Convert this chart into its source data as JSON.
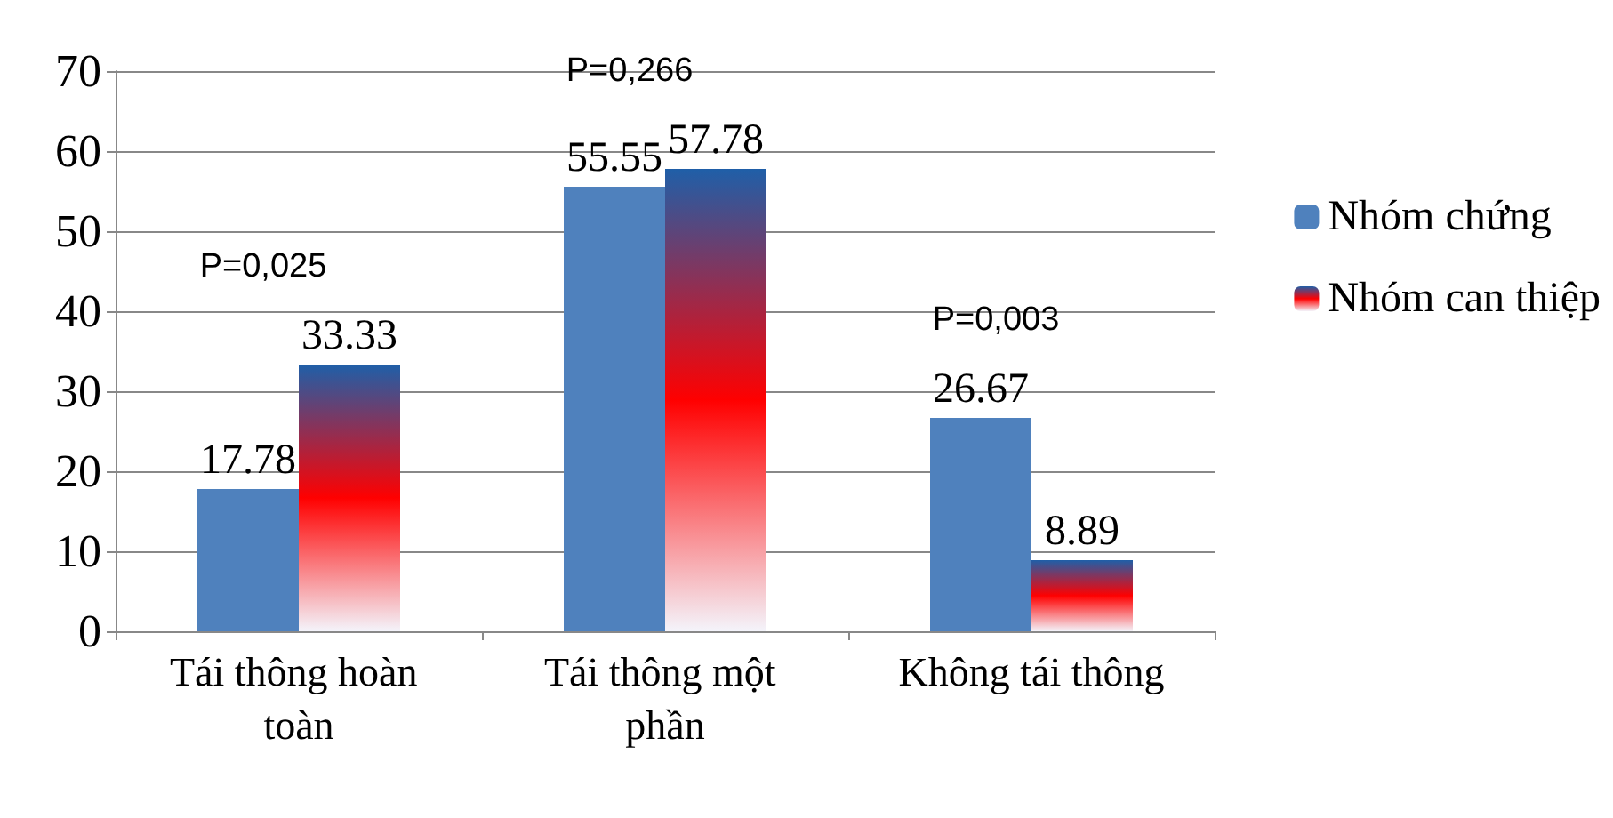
{
  "chart_data": {
    "type": "bar",
    "categories": [
      "Tái thông hoàn toàn",
      "Tái thông một phần",
      "Không tái thông"
    ],
    "series": [
      {
        "name": "Nhóm chứng",
        "color": "#4f81bd",
        "values": [
          17.78,
          55.55,
          26.67
        ]
      },
      {
        "name": "Nhóm can thiệp",
        "color": "#ff0000",
        "values": [
          33.33,
          57.78,
          8.89
        ]
      }
    ],
    "ylim": [
      0,
      70
    ],
    "yticks": [
      0,
      10,
      20,
      30,
      40,
      50,
      60,
      70
    ],
    "grid": "y",
    "legend": "right",
    "data_labels": true,
    "annotations": [
      "P=0,025",
      "P=0,266",
      "P=0,003"
    ]
  }
}
